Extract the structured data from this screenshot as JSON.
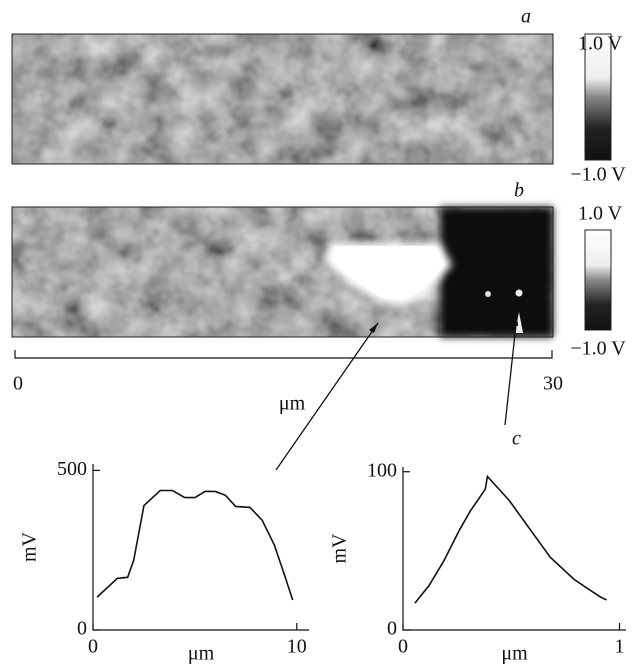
{
  "figure": {
    "panel_labels": [
      "a",
      "b",
      "c"
    ],
    "colorbars": [
      {
        "max_label": "1.0 V",
        "min_label": "−1.0 V"
      },
      {
        "max_label": "1.0 V",
        "min_label": "−1.0 V"
      }
    ],
    "scale_bar": {
      "start": "0",
      "end": "30",
      "unit": "μm"
    }
  },
  "chart_data": [
    {
      "type": "line",
      "x_label": "μm",
      "y_label": "mV",
      "x": [
        0.2,
        1.2,
        1.7,
        2.0,
        2.5,
        3.3,
        3.9,
        4.5,
        5.0,
        5.5,
        6.0,
        6.5,
        7.0,
        7.7,
        8.3,
        8.9,
        9.4,
        9.8
      ],
      "series": [
        {
          "color": "#111111",
          "values": [
            103,
            162,
            165,
            219,
            390,
            437,
            437,
            415,
            415,
            434,
            434,
            422,
            387,
            384,
            344,
            266,
            172,
            94
          ]
        }
      ],
      "xlim": [
        0,
        10.6
      ],
      "ylim": [
        0,
        520
      ],
      "xticks": [
        0,
        10
      ],
      "yticks": [
        0,
        500
      ]
    },
    {
      "type": "line",
      "x_label": "μm",
      "y_label": "mV",
      "x": [
        0.055,
        0.12,
        0.19,
        0.26,
        0.31,
        0.38,
        0.39,
        0.49,
        0.59,
        0.68,
        0.79,
        0.91,
        0.94
      ],
      "series": [
        {
          "color": "#111111",
          "values": [
            17,
            28,
            44,
            63,
            75,
            89,
            97,
            82,
            63,
            46,
            32,
            21,
            19
          ]
        }
      ],
      "xlim": [
        0,
        1.03
      ],
      "ylim": [
        0,
        103
      ],
      "xticks": [
        0,
        1
      ],
      "yticks": [
        0,
        100
      ]
    }
  ]
}
